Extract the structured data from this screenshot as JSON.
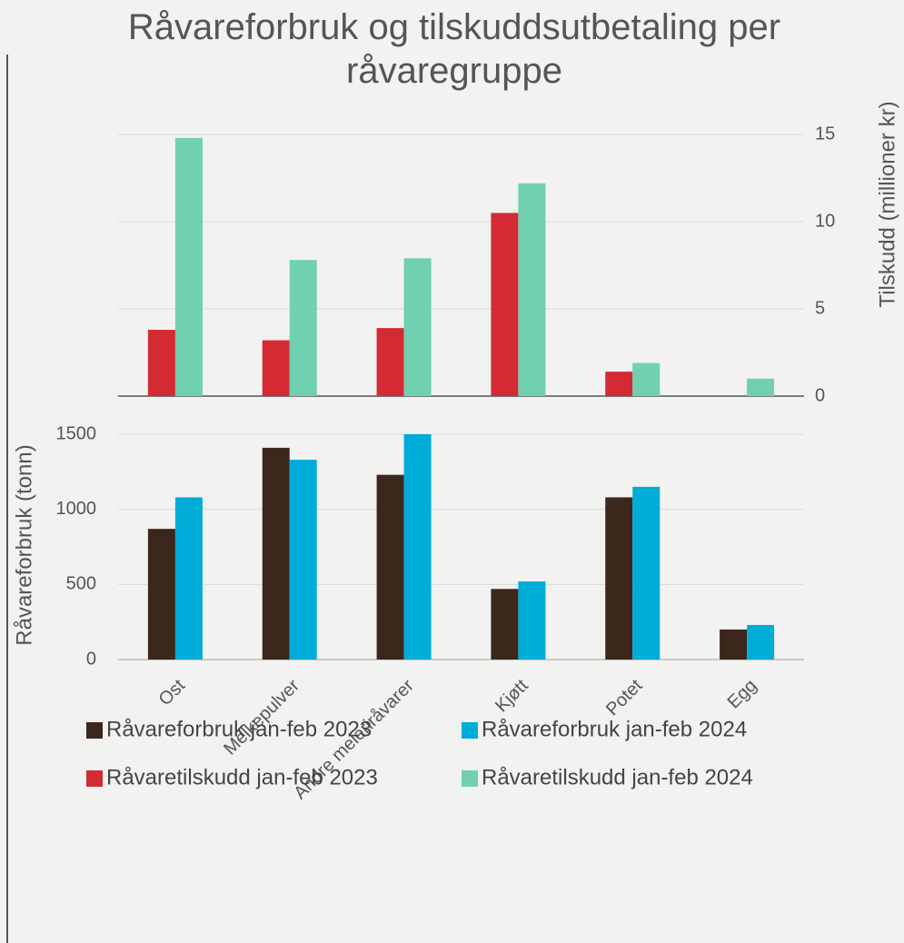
{
  "chart_data": [
    {
      "type": "bar",
      "y2label": "Tilskudd (millioner kr)",
      "y2lim": [
        0,
        15
      ],
      "y2ticks": [
        0,
        5,
        10,
        15
      ],
      "grid": true,
      "series": [
        {
          "name": "Råvaretilskudd jan-feb 2023",
          "color": "#d42a33",
          "axis": "y2",
          "values": [
            3.8,
            3.2,
            3.9,
            10.5,
            1.4,
            0
          ]
        },
        {
          "name": "Råvaretilskudd jan-feb 2024",
          "color": "#70d0b0",
          "axis": "y2",
          "values": [
            14.8,
            7.8,
            7.9,
            12.2,
            1.9,
            1.0
          ]
        }
      ]
    },
    {
      "type": "bar",
      "title": "Råvareforbruk og tilskuddsutbetaling per råvaregruppe",
      "ylabel": "Råvareforbruk (tonn)",
      "categories": [
        "Ost",
        "Melkepulver",
        "Andre meieriråvarer",
        "Kjøtt",
        "Potet",
        "Egg"
      ],
      "ylim": [
        0,
        1500
      ],
      "yticks": [
        0,
        500,
        1000,
        1500
      ],
      "grid": true,
      "series": [
        {
          "name": "Råvareforbruk jan-feb 2023",
          "color": "#3b271c",
          "values": [
            870,
            1410,
            1230,
            470,
            1080,
            200
          ]
        },
        {
          "name": "Råvareforbruk jan-feb 2024",
          "color": "#00acd8",
          "values": [
            1080,
            1330,
            1500,
            520,
            1150,
            230
          ]
        }
      ]
    }
  ]
}
